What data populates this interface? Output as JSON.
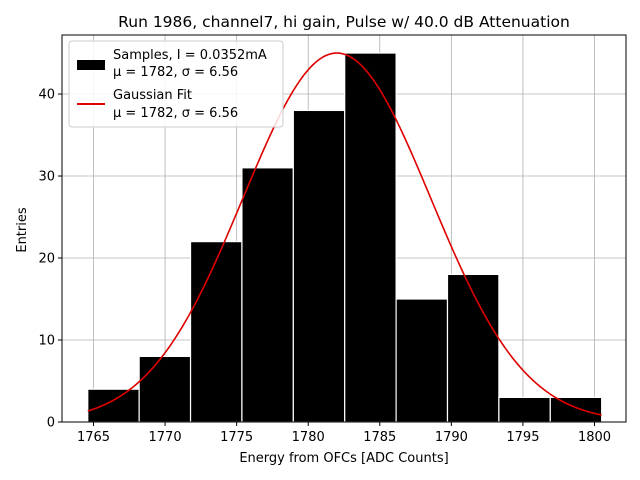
{
  "chart_data": {
    "type": "bar",
    "title": "Run 1986, channel7, hi gain, Pulse w/ 40.0 dB Attenuation",
    "xlabel": "Energy from OFCs [ADC Counts]",
    "ylabel": "Entries",
    "xlim": [
      1762.8,
      1802.2
    ],
    "ylim": [
      0,
      47.2
    ],
    "x_ticks": [
      1765,
      1770,
      1775,
      1780,
      1785,
      1790,
      1795,
      1800
    ],
    "y_ticks": [
      0,
      10,
      20,
      30,
      40
    ],
    "grid": true,
    "legend_position": "top-left",
    "bin_edges": [
      1764.6,
      1768.19,
      1771.78,
      1775.37,
      1778.96,
      1782.55,
      1786.14,
      1789.73,
      1793.32,
      1796.91,
      1800.5
    ],
    "series": [
      {
        "name": "Samples, I = 0.0352mA",
        "name_line2": "μ = 1782, σ = 6.56",
        "kind": "histogram",
        "color": "#000000",
        "values": [
          4,
          8,
          22,
          31,
          38,
          45,
          15,
          18,
          3,
          3
        ]
      },
      {
        "name": "Gaussian Fit",
        "name_line2": "μ = 1782, σ = 6.56",
        "kind": "line",
        "color": "#e00000",
        "mu": 1782,
        "sigma": 6.56,
        "amplitude": 45,
        "x_range": [
          1764.6,
          1800.5
        ]
      }
    ]
  }
}
